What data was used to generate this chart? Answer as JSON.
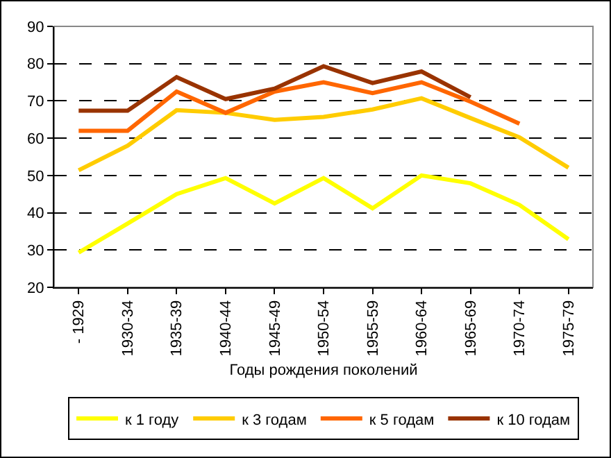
{
  "chart_data": {
    "type": "line",
    "xlabel": "Годы рождения поколений",
    "categories": [
      "- 1929",
      "1930-34",
      "1935-39",
      "1940-44",
      "1945-49",
      "1950-54",
      "1955-59",
      "1960-64",
      "1965-69",
      "1970-74",
      "1975-79"
    ],
    "series": [
      {
        "name": "к 1 году",
        "color": "#ffff00",
        "values": [
          29.3,
          37.1,
          45,
          49.3,
          42.5,
          49.3,
          41.2,
          50,
          47.9,
          42.1,
          32.9
        ]
      },
      {
        "name": "к 3 годам",
        "color": "#ffcc00",
        "values": [
          51.4,
          58,
          67.5,
          66.8,
          64.9,
          65.7,
          67.7,
          70.7,
          65.4,
          60.2,
          52.1
        ]
      },
      {
        "name": "к 5 годам",
        "color": "#ff6600",
        "values": [
          62,
          62,
          72.5,
          66.8,
          72.5,
          75,
          72.1,
          75,
          69.8,
          63.9,
          null
        ]
      },
      {
        "name": "к 10 годам",
        "color": "#993300",
        "values": [
          67.4,
          67.4,
          76.4,
          70.5,
          73.3,
          79.3,
          74.8,
          77.9,
          71,
          null,
          null
        ]
      }
    ],
    "ylim": [
      20,
      90
    ],
    "yticks": [
      20,
      30,
      40,
      50,
      60,
      70,
      80,
      90
    ],
    "grid": "y",
    "legend": "bottom",
    "marker": "none",
    "line_style": "solid"
  }
}
